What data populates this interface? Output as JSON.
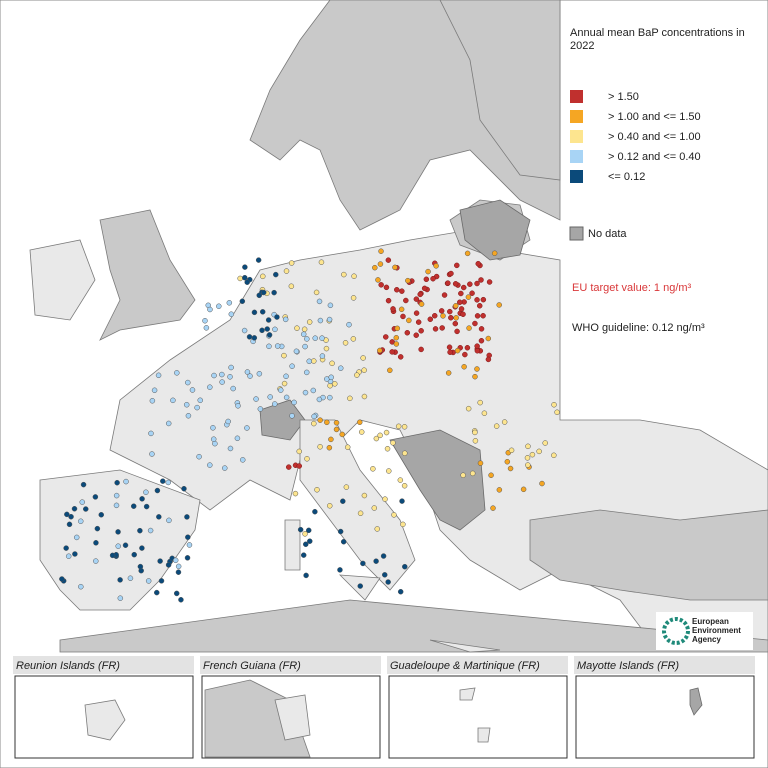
{
  "legend": {
    "title": "Annual mean BaP concentrations in 2022",
    "classes": [
      {
        "label": "> 1.50",
        "color": "#c0302e"
      },
      {
        "label": "> 1.00 and <= 1.50",
        "color": "#f5a623"
      },
      {
        "label": "> 0.40 and <= 1.00",
        "color": "#fde58f"
      },
      {
        "label": "> 0.12 and <= 0.40",
        "color": "#a8d4f5"
      },
      {
        "label": "<= 0.12",
        "color": "#0b4a7a"
      }
    ],
    "no_data": {
      "label": "No data",
      "color": "#a6a6a6"
    }
  },
  "eu_target": "EU target value: 1 ng/m³",
  "who_guideline": "WHO guideline: 0.12 ng/m³",
  "insets": [
    "Reunion Islands (FR)",
    "French Guiana (FR)",
    "Guadeloupe & Martinique (FR)",
    "Mayotte Islands (FR)"
  ],
  "logo": [
    "European",
    "Environment",
    "Agency"
  ]
}
